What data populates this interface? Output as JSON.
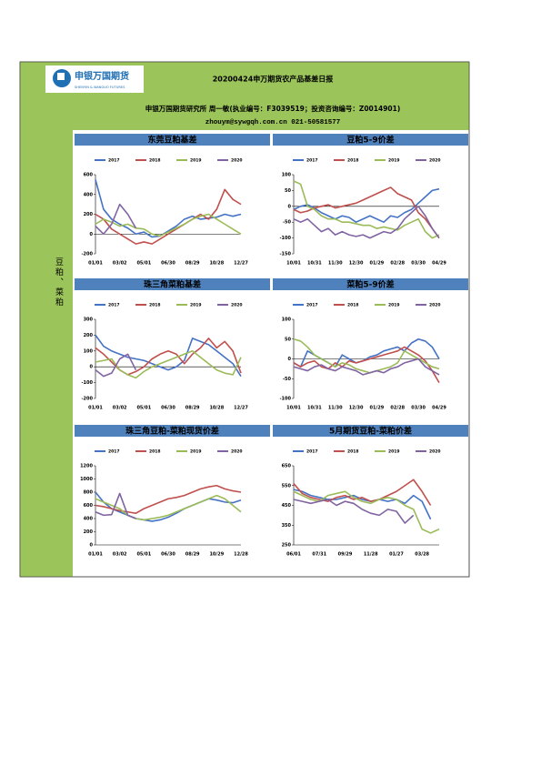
{
  "header": {
    "logo_text": "申银万国期货",
    "logo_subtitle": "SHENYIN & WANGUO FUTURES",
    "title": "20200424申万期货农产品基差日报",
    "line1": "申银万国期货研究所 周一敏(执业编号：F3039519；投资咨询编号：Z0014901)",
    "line2": "zhouym@sywgqh.com.cn 021-50581577"
  },
  "side_label": "豆粕、菜粕",
  "chart_data": [
    {
      "type": "line",
      "title": "东莞豆粕基差",
      "categories": [
        "01/01",
        null,
        null,
        "03/02",
        null,
        null,
        "05/01",
        null,
        null,
        "06/30",
        null,
        null,
        "08/29",
        null,
        null,
        "10/28",
        null,
        null,
        "12/27"
      ],
      "ylim": [
        -200,
        600
      ],
      "yticks": [
        -200,
        0,
        200,
        400,
        600
      ],
      "series": [
        {
          "name": "2017",
          "color": "#4472c4",
          "values": [
            550,
            250,
            150,
            100,
            60,
            0,
            20,
            -30,
            -20,
            30,
            80,
            150,
            180,
            150,
            160,
            170,
            200,
            180,
            200
          ]
        },
        {
          "name": "2018",
          "color": "#c0504d",
          "values": [
            200,
            150,
            50,
            0,
            -50,
            -100,
            -80,
            -100,
            -50,
            0,
            50,
            100,
            150,
            200,
            150,
            250,
            450,
            350,
            300
          ]
        },
        {
          "name": "2019",
          "color": "#9bbb59",
          "values": [
            100,
            150,
            120,
            80,
            100,
            60,
            50,
            0,
            -20,
            20,
            60,
            100,
            150,
            180,
            200,
            150,
            100,
            50,
            0
          ]
        },
        {
          "name": "2020",
          "color": "#8064a2",
          "values": [
            80,
            0,
            100,
            300,
            200,
            60,
            null,
            null,
            null,
            null,
            null,
            null,
            null,
            null,
            null,
            null,
            null,
            null,
            null
          ]
        }
      ]
    },
    {
      "type": "line",
      "title": "豆粕5-9价差",
      "categories": [
        "10/01",
        null,
        null,
        "10/31",
        null,
        null,
        "11/30",
        null,
        null,
        "12/30",
        null,
        null,
        "01/29",
        null,
        null,
        "02/28",
        null,
        null,
        "03/30",
        null,
        null,
        "04/29"
      ],
      "ylim": [
        -150,
        100
      ],
      "yticks": [
        -150,
        -100,
        -50,
        0,
        50,
        100
      ],
      "series": [
        {
          "name": "2017",
          "color": "#4472c4",
          "values": [
            -10,
            0,
            5,
            -5,
            -20,
            -30,
            -40,
            -30,
            -35,
            -50,
            -40,
            -30,
            -40,
            -50,
            -30,
            -35,
            -20,
            -10,
            10,
            30,
            50,
            55
          ]
        },
        {
          "name": "2018",
          "color": "#c0504d",
          "values": [
            -10,
            -20,
            -15,
            -5,
            0,
            5,
            -5,
            0,
            5,
            10,
            20,
            30,
            40,
            50,
            60,
            40,
            30,
            20,
            -20,
            -40,
            -70,
            -100
          ]
        },
        {
          "name": "2019",
          "color": "#9bbb59",
          "values": [
            80,
            70,
            0,
            -10,
            -30,
            -40,
            -40,
            -50,
            -50,
            -55,
            -60,
            -60,
            -70,
            -65,
            -70,
            -75,
            -60,
            -50,
            -40,
            -80,
            -100,
            -90
          ]
        },
        {
          "name": "2020",
          "color": "#8064a2",
          "values": [
            -40,
            -50,
            -40,
            -60,
            -80,
            -70,
            -90,
            -80,
            -90,
            -95,
            -90,
            -100,
            -90,
            -80,
            -85,
            -70,
            -40,
            -20,
            0,
            -30,
            -70,
            -100
          ]
        }
      ]
    },
    {
      "type": "line",
      "title": "珠三角菜粕基差",
      "categories": [
        "01/01",
        null,
        null,
        "03/02",
        null,
        null,
        "05/01",
        null,
        null,
        "06/30",
        null,
        null,
        "08/29",
        null,
        null,
        "10/28",
        null,
        null,
        "12/27"
      ],
      "ylim": [
        -200,
        300
      ],
      "yticks": [
        -200,
        -100,
        0,
        100,
        200,
        300
      ],
      "series": [
        {
          "name": "2017",
          "color": "#4472c4",
          "values": [
            200,
            130,
            100,
            80,
            60,
            50,
            40,
            20,
            0,
            -20,
            0,
            40,
            180,
            160,
            140,
            100,
            60,
            20,
            -60
          ]
        },
        {
          "name": "2018",
          "color": "#c0504d",
          "values": [
            120,
            80,
            30,
            -20,
            -50,
            -30,
            0,
            50,
            80,
            100,
            80,
            20,
            80,
            120,
            180,
            120,
            160,
            100,
            -40
          ]
        },
        {
          "name": "2019",
          "color": "#9bbb59",
          "values": [
            30,
            40,
            50,
            -20,
            -50,
            -70,
            -30,
            0,
            20,
            40,
            60,
            80,
            100,
            60,
            20,
            -20,
            -40,
            -50,
            60
          ]
        },
        {
          "name": "2020",
          "color": "#8064a2",
          "values": [
            -20,
            -60,
            -40,
            50,
            80,
            -20,
            null,
            null,
            null,
            null,
            null,
            null,
            null,
            null,
            null,
            null,
            null,
            null,
            null
          ]
        }
      ]
    },
    {
      "type": "line",
      "title": "菜粕5-9价差",
      "categories": [
        "10/01",
        null,
        null,
        "10/31",
        null,
        null,
        "11/30",
        null,
        null,
        "12/30",
        null,
        null,
        "01/29",
        null,
        null,
        "02/28",
        null,
        null,
        "03/30",
        null,
        null,
        "04/29"
      ],
      "ylim": [
        -100,
        100
      ],
      "yticks": [
        -100,
        -50,
        0,
        50,
        100
      ],
      "series": [
        {
          "name": "2017",
          "color": "#4472c4",
          "values": [
            -10,
            -20,
            20,
            10,
            0,
            -10,
            -20,
            10,
            0,
            -10,
            -5,
            5,
            10,
            20,
            25,
            30,
            20,
            40,
            50,
            45,
            30,
            0
          ]
        },
        {
          "name": "2018",
          "color": "#c0504d",
          "values": [
            -10,
            -20,
            -10,
            -5,
            -20,
            -25,
            -10,
            -20,
            -5,
            -10,
            -5,
            0,
            5,
            10,
            15,
            20,
            30,
            20,
            10,
            -5,
            -30,
            -60
          ]
        },
        {
          "name": "2019",
          "color": "#9bbb59",
          "values": [
            50,
            45,
            30,
            10,
            0,
            -10,
            -20,
            -10,
            -15,
            -25,
            -30,
            -35,
            -30,
            -25,
            -20,
            -10,
            20,
            10,
            0,
            -10,
            -20,
            -25
          ]
        },
        {
          "name": "2020",
          "color": "#8064a2",
          "values": [
            -20,
            -25,
            -30,
            -20,
            -15,
            -25,
            -30,
            -20,
            -25,
            -30,
            -40,
            -35,
            -30,
            -35,
            -25,
            -20,
            -10,
            -5,
            0,
            -20,
            -30,
            -40
          ]
        }
      ]
    },
    {
      "type": "line",
      "title": "珠三角豆粕-菜粕现货价差",
      "categories": [
        "01/01",
        null,
        null,
        "03/02",
        null,
        null,
        "05/01",
        null,
        null,
        "06/30",
        null,
        null,
        "08/29",
        null,
        null,
        "10/29",
        null,
        null,
        "12/28"
      ],
      "ylim": [
        0,
        1200
      ],
      "yticks": [
        0,
        200,
        400,
        600,
        800,
        1000,
        1200
      ],
      "series": [
        {
          "name": "2017",
          "color": "#4472c4",
          "values": [
            800,
            650,
            550,
            500,
            450,
            400,
            380,
            360,
            380,
            420,
            480,
            550,
            600,
            650,
            700,
            680,
            650,
            640,
            680
          ]
        },
        {
          "name": "2018",
          "color": "#c0504d",
          "values": [
            600,
            580,
            550,
            520,
            500,
            480,
            550,
            600,
            650,
            700,
            720,
            750,
            800,
            850,
            880,
            900,
            850,
            820,
            800
          ]
        },
        {
          "name": "2019",
          "color": "#9bbb59",
          "values": [
            700,
            650,
            600,
            550,
            450,
            400,
            380,
            400,
            420,
            450,
            500,
            550,
            600,
            650,
            700,
            750,
            700,
            600,
            500
          ]
        },
        {
          "name": "2020",
          "color": "#8064a2",
          "values": [
            500,
            450,
            460,
            780,
            450,
            400,
            null,
            null,
            null,
            null,
            null,
            null,
            null,
            null,
            null,
            null,
            null,
            null,
            null
          ]
        }
      ]
    },
    {
      "type": "line",
      "title": "5月期货豆粕-菜粕价差",
      "categories": [
        "06/01",
        null,
        null,
        "07/31",
        null,
        null,
        "09/29",
        null,
        null,
        "11/28",
        null,
        null,
        "01/27",
        null,
        null,
        "03/28",
        null,
        null
      ],
      "ylim": [
        250,
        650
      ],
      "yticks": [
        250,
        350,
        450,
        550,
        650
      ],
      "series": [
        {
          "name": "2017",
          "color": "#4472c4",
          "values": [
            530,
            520,
            500,
            490,
            480,
            480,
            490,
            500,
            480,
            470,
            480,
            470,
            480,
            460,
            500,
            470,
            380,
            null
          ]
        },
        {
          "name": "2018",
          "color": "#c0504d",
          "values": [
            560,
            510,
            490,
            480,
            470,
            490,
            500,
            480,
            490,
            470,
            480,
            500,
            520,
            550,
            580,
            520,
            450,
            null
          ]
        },
        {
          "name": "2019",
          "color": "#9bbb59",
          "values": [
            520,
            500,
            480,
            470,
            500,
            510,
            520,
            490,
            470,
            460,
            480,
            490,
            480,
            450,
            430,
            330,
            310,
            330
          ]
        },
        {
          "name": "2020",
          "color": "#8064a2",
          "values": [
            480,
            470,
            460,
            470,
            480,
            450,
            470,
            460,
            430,
            410,
            400,
            430,
            420,
            360,
            400,
            null,
            null,
            null
          ]
        }
      ]
    }
  ]
}
